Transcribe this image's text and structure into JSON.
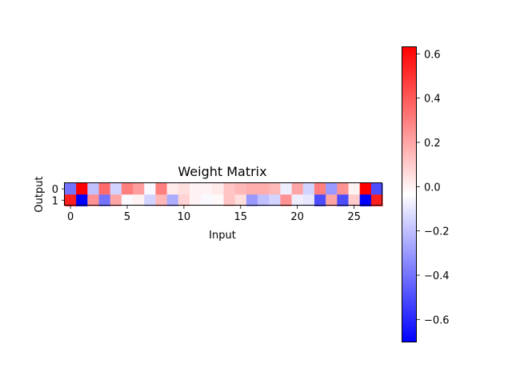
{
  "chart_data": {
    "type": "heatmap",
    "title": "Weight Matrix",
    "xlabel": "Input",
    "ylabel": "Output",
    "rows": [
      0,
      1
    ],
    "cols": 28,
    "x_ticks": [
      0,
      5,
      10,
      15,
      20,
      25
    ],
    "y_ticks": [
      0,
      1
    ],
    "values": [
      [
        -0.4,
        0.63,
        -0.2,
        0.35,
        -0.15,
        0.3,
        0.22,
        -0.05,
        0.3,
        0.02,
        0.05,
        0.0,
        0.0,
        0.02,
        0.12,
        0.15,
        0.18,
        0.18,
        0.15,
        -0.08,
        0.2,
        -0.15,
        0.3,
        -0.3,
        0.25,
        0.0,
        0.63,
        -0.5
      ],
      [
        0.55,
        -0.7,
        0.25,
        -0.4,
        0.2,
        -0.05,
        0.0,
        -0.15,
        0.15,
        -0.25,
        0.08,
        0.0,
        -0.05,
        -0.02,
        0.12,
        0.05,
        -0.3,
        -0.2,
        -0.15,
        0.25,
        -0.08,
        -0.1,
        -0.5,
        0.2,
        -0.5,
        0.1,
        -0.7,
        0.55
      ]
    ],
    "colormap": "bwr",
    "vmin": -0.7,
    "vmax": 0.63,
    "colorbar_ticks": [
      0.6,
      0.4,
      0.2,
      0.0,
      -0.2,
      -0.4,
      -0.6
    ],
    "colorbar_tick_labels": [
      "0.6",
      "0.4",
      "0.2",
      "0.0",
      "−0.2",
      "−0.4",
      "−0.6"
    ],
    "grid": false
  }
}
